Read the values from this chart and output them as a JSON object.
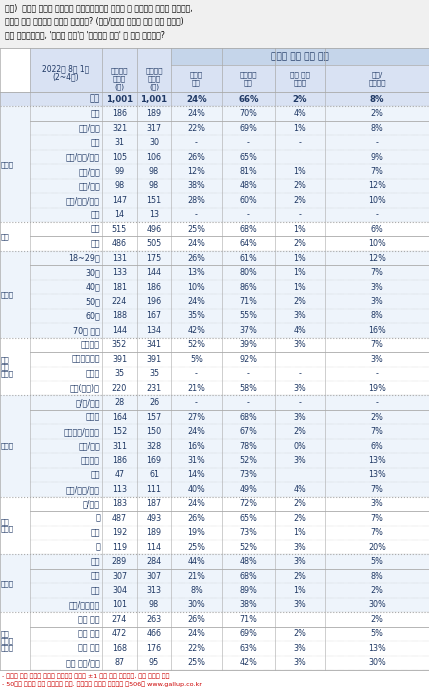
{
  "question": "질문)  귀하는 윤석열 대통령이 대통령으로서의 직무를 잘 수행하고 있다고 보십니까,\n아니면 잘못 수행하고 있다고 보십니까? (긍정/부정을 답하지 않은 경우 재질문)\n굳이 말씀하신다면, '잘하고 있다'와 '잘못하고 있다' 중 어느 쪽입니까?",
  "rows": [
    {
      "cat": "",
      "sub": "전체",
      "n1": "1,001",
      "n2": "1,001",
      "v1": "24%",
      "v2": "66%",
      "v3": "2%",
      "v4": "8%",
      "bold": true,
      "group_start": false
    },
    {
      "cat": "지역별",
      "sub": "서울",
      "n1": "186",
      "n2": "189",
      "v1": "24%",
      "v2": "70%",
      "v3": "4%",
      "v4": "2%",
      "bold": false,
      "group_start": true
    },
    {
      "cat": "",
      "sub": "인천/경기",
      "n1": "321",
      "n2": "317",
      "v1": "22%",
      "v2": "69%",
      "v3": "1%",
      "v4": "8%",
      "bold": false,
      "group_start": false
    },
    {
      "cat": "",
      "sub": "강원",
      "n1": "31",
      "n2": "30",
      "v1": "-",
      "v2": "-",
      "v3": "-",
      "v4": "-",
      "bold": false,
      "group_start": false
    },
    {
      "cat": "",
      "sub": "대전/세종/충청",
      "n1": "105",
      "n2": "106",
      "v1": "26%",
      "v2": "65%",
      "v3": "",
      "v4": "9%",
      "bold": false,
      "group_start": false
    },
    {
      "cat": "",
      "sub": "광주/전라",
      "n1": "99",
      "n2": "98",
      "v1": "12%",
      "v2": "81%",
      "v3": "1%",
      "v4": "7%",
      "bold": false,
      "group_start": false
    },
    {
      "cat": "",
      "sub": "대구/경북",
      "n1": "98",
      "n2": "98",
      "v1": "38%",
      "v2": "48%",
      "v3": "2%",
      "v4": "12%",
      "bold": false,
      "group_start": false
    },
    {
      "cat": "",
      "sub": "부산/울산/경남",
      "n1": "147",
      "n2": "151",
      "v1": "28%",
      "v2": "60%",
      "v3": "2%",
      "v4": "10%",
      "bold": false,
      "group_start": false
    },
    {
      "cat": "",
      "sub": "제주",
      "n1": "14",
      "n2": "13",
      "v1": "-",
      "v2": "-",
      "v3": "-",
      "v4": "-",
      "bold": false,
      "group_start": false
    },
    {
      "cat": "성별",
      "sub": "남성",
      "n1": "515",
      "n2": "496",
      "v1": "25%",
      "v2": "68%",
      "v3": "1%",
      "v4": "6%",
      "bold": false,
      "group_start": true
    },
    {
      "cat": "",
      "sub": "여성",
      "n1": "486",
      "n2": "505",
      "v1": "24%",
      "v2": "64%",
      "v3": "2%",
      "v4": "10%",
      "bold": false,
      "group_start": false
    },
    {
      "cat": "연령별",
      "sub": "18~29세",
      "n1": "131",
      "n2": "175",
      "v1": "26%",
      "v2": "61%",
      "v3": "1%",
      "v4": "12%",
      "bold": false,
      "group_start": true
    },
    {
      "cat": "",
      "sub": "30대",
      "n1": "133",
      "n2": "144",
      "v1": "13%",
      "v2": "80%",
      "v3": "1%",
      "v4": "7%",
      "bold": false,
      "group_start": false
    },
    {
      "cat": "",
      "sub": "40대",
      "n1": "181",
      "n2": "186",
      "v1": "10%",
      "v2": "86%",
      "v3": "1%",
      "v4": "3%",
      "bold": false,
      "group_start": false
    },
    {
      "cat": "",
      "sub": "50대",
      "n1": "224",
      "n2": "196",
      "v1": "24%",
      "v2": "71%",
      "v3": "2%",
      "v4": "3%",
      "bold": false,
      "group_start": false
    },
    {
      "cat": "",
      "sub": "60대",
      "n1": "188",
      "n2": "167",
      "v1": "35%",
      "v2": "55%",
      "v3": "3%",
      "v4": "8%",
      "bold": false,
      "group_start": false
    },
    {
      "cat": "",
      "sub": "70대 이상",
      "n1": "144",
      "n2": "134",
      "v1": "42%",
      "v2": "37%",
      "v3": "4%",
      "v4": "16%",
      "bold": false,
      "group_start": false
    },
    {
      "cat": "주요",
      "sub": "국민의힘",
      "n1": "352",
      "n2": "341",
      "v1": "52%",
      "v2": "39%",
      "v3": "3%",
      "v4": "7%",
      "bold": false,
      "group_start": true
    },
    {
      "cat": "지지",
      "sub": "더불어민주당",
      "n1": "391",
      "n2": "391",
      "v1": "5%",
      "v2": "92%",
      "v3": "",
      "v4": "3%",
      "bold": false,
      "group_start": false
    },
    {
      "cat": "정당별",
      "sub": "정의당",
      "n1": "35",
      "n2": "35",
      "v1": "-",
      "v2": "-",
      "v3": "-",
      "v4": "-",
      "bold": false,
      "group_start": false
    },
    {
      "cat": "",
      "sub": "무당(無黨)층",
      "n1": "220",
      "n2": "231",
      "v1": "21%",
      "v2": "58%",
      "v3": "3%",
      "v4": "19%",
      "bold": false,
      "group_start": false
    },
    {
      "cat": "직업별",
      "sub": "농/임/어업",
      "n1": "28",
      "n2": "26",
      "v1": "-",
      "v2": "-",
      "v3": "-",
      "v4": "-",
      "bold": false,
      "group_start": true
    },
    {
      "cat": "",
      "sub": "자영업",
      "n1": "164",
      "n2": "157",
      "v1": "27%",
      "v2": "68%",
      "v3": "3%",
      "v4": "2%",
      "bold": false,
      "group_start": false
    },
    {
      "cat": "",
      "sub": "기능노무/서비스",
      "n1": "152",
      "n2": "150",
      "v1": "24%",
      "v2": "67%",
      "v3": "2%",
      "v4": "7%",
      "bold": false,
      "group_start": false
    },
    {
      "cat": "",
      "sub": "사무/관리",
      "n1": "311",
      "n2": "328",
      "v1": "16%",
      "v2": "78%",
      "v3": "0%",
      "v4": "6%",
      "bold": false,
      "group_start": false
    },
    {
      "cat": "",
      "sub": "전업주부",
      "n1": "186",
      "n2": "169",
      "v1": "31%",
      "v2": "52%",
      "v3": "3%",
      "v4": "13%",
      "bold": false,
      "group_start": false
    },
    {
      "cat": "",
      "sub": "학생",
      "n1": "47",
      "n2": "61",
      "v1": "14%",
      "v2": "73%",
      "v3": "",
      "v4": "13%",
      "bold": false,
      "group_start": false
    },
    {
      "cat": "",
      "sub": "무직/은퇴/기타",
      "n1": "113",
      "n2": "111",
      "v1": "40%",
      "v2": "49%",
      "v3": "4%",
      "v4": "7%",
      "bold": false,
      "group_start": false
    },
    {
      "cat": "생활",
      "sub": "상/중상",
      "n1": "183",
      "n2": "187",
      "v1": "24%",
      "v2": "72%",
      "v3": "2%",
      "v4": "3%",
      "bold": false,
      "group_start": true
    },
    {
      "cat": "수준별",
      "sub": "중",
      "n1": "487",
      "n2": "493",
      "v1": "26%",
      "v2": "65%",
      "v3": "2%",
      "v4": "7%",
      "bold": false,
      "group_start": false
    },
    {
      "cat": "",
      "sub": "중하",
      "n1": "192",
      "n2": "189",
      "v1": "19%",
      "v2": "73%",
      "v3": "1%",
      "v4": "7%",
      "bold": false,
      "group_start": false
    },
    {
      "cat": "",
      "sub": "하",
      "n1": "119",
      "n2": "114",
      "v1": "25%",
      "v2": "52%",
      "v3": "3%",
      "v4": "20%",
      "bold": false,
      "group_start": false
    },
    {
      "cat": "성향별",
      "sub": "보수",
      "n1": "289",
      "n2": "284",
      "v1": "44%",
      "v2": "48%",
      "v3": "3%",
      "v4": "5%",
      "bold": false,
      "group_start": true
    },
    {
      "cat": "",
      "sub": "중도",
      "n1": "307",
      "n2": "307",
      "v1": "21%",
      "v2": "68%",
      "v3": "2%",
      "v4": "8%",
      "bold": false,
      "group_start": false
    },
    {
      "cat": "",
      "sub": "진보",
      "n1": "304",
      "n2": "313",
      "v1": "8%",
      "v2": "89%",
      "v3": "1%",
      "v4": "2%",
      "bold": false,
      "group_start": false
    },
    {
      "cat": "",
      "sub": "모름/응답거절",
      "n1": "101",
      "n2": "98",
      "v1": "30%",
      "v2": "38%",
      "v3": "3%",
      "v4": "30%",
      "bold": false,
      "group_start": false
    },
    {
      "cat": "평소",
      "sub": "많이 있다",
      "n1": "274",
      "n2": "263",
      "v1": "26%",
      "v2": "71%",
      "v3": "",
      "v4": "2%",
      "bold": false,
      "group_start": true
    },
    {
      "cat": "정치에",
      "sub": "약간 있다",
      "n1": "472",
      "n2": "466",
      "v1": "24%",
      "v2": "69%",
      "v3": "2%",
      "v4": "5%",
      "bold": false,
      "group_start": false
    },
    {
      "cat": "관심이",
      "sub": "별로 없다",
      "n1": "168",
      "n2": "176",
      "v1": "22%",
      "v2": "63%",
      "v3": "3%",
      "v4": "13%",
      "bold": false,
      "group_start": false
    },
    {
      "cat": "",
      "sub": "전혀 없다/모를",
      "n1": "87",
      "n2": "95",
      "v1": "25%",
      "v2": "42%",
      "v3": "3%",
      "v4": "30%",
      "bold": false,
      "group_start": false
    }
  ],
  "footnotes": [
    "- 소수점 아래 반올림 때문에 백분율을 합계는 ±1 차이 발생 가능하며, 이는 오류가 아님",
    "- 50사례 미만은 수치 제시하지 않음. 한국갤럽 데일리 오피니언 제506호 www.gallup.co.kr"
  ],
  "border_col": "#AAAAAA",
  "dark_text": "#1F3864",
  "light_blue": "#D9E2F3",
  "header_light": "#E9EFF9",
  "row_bg_alt": "#EEF4FB"
}
